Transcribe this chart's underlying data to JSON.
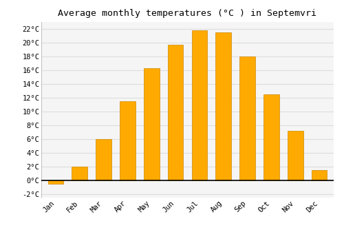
{
  "months": [
    "Jan",
    "Feb",
    "Mar",
    "Apr",
    "May",
    "Jun",
    "Jul",
    "Aug",
    "Sep",
    "Oct",
    "Nov",
    "Dec"
  ],
  "values": [
    -0.5,
    2.0,
    6.0,
    11.5,
    16.3,
    19.7,
    21.8,
    21.5,
    18.0,
    12.5,
    7.2,
    1.5
  ],
  "bar_color": "#FFAA00",
  "bar_edge_color": "#CC8800",
  "title": "Average monthly temperatures (°C ) in Septemvri",
  "title_fontsize": 9.5,
  "ylim": [
    -2.5,
    23
  ],
  "yticks": [
    -2,
    0,
    2,
    4,
    6,
    8,
    10,
    12,
    14,
    16,
    18,
    20,
    22
  ],
  "background_color": "#FFFFFF",
  "plot_bg_color": "#F5F5F5",
  "grid_color": "#DDDDDD",
  "tick_label_fontsize": 7.5,
  "bar_width": 0.65
}
